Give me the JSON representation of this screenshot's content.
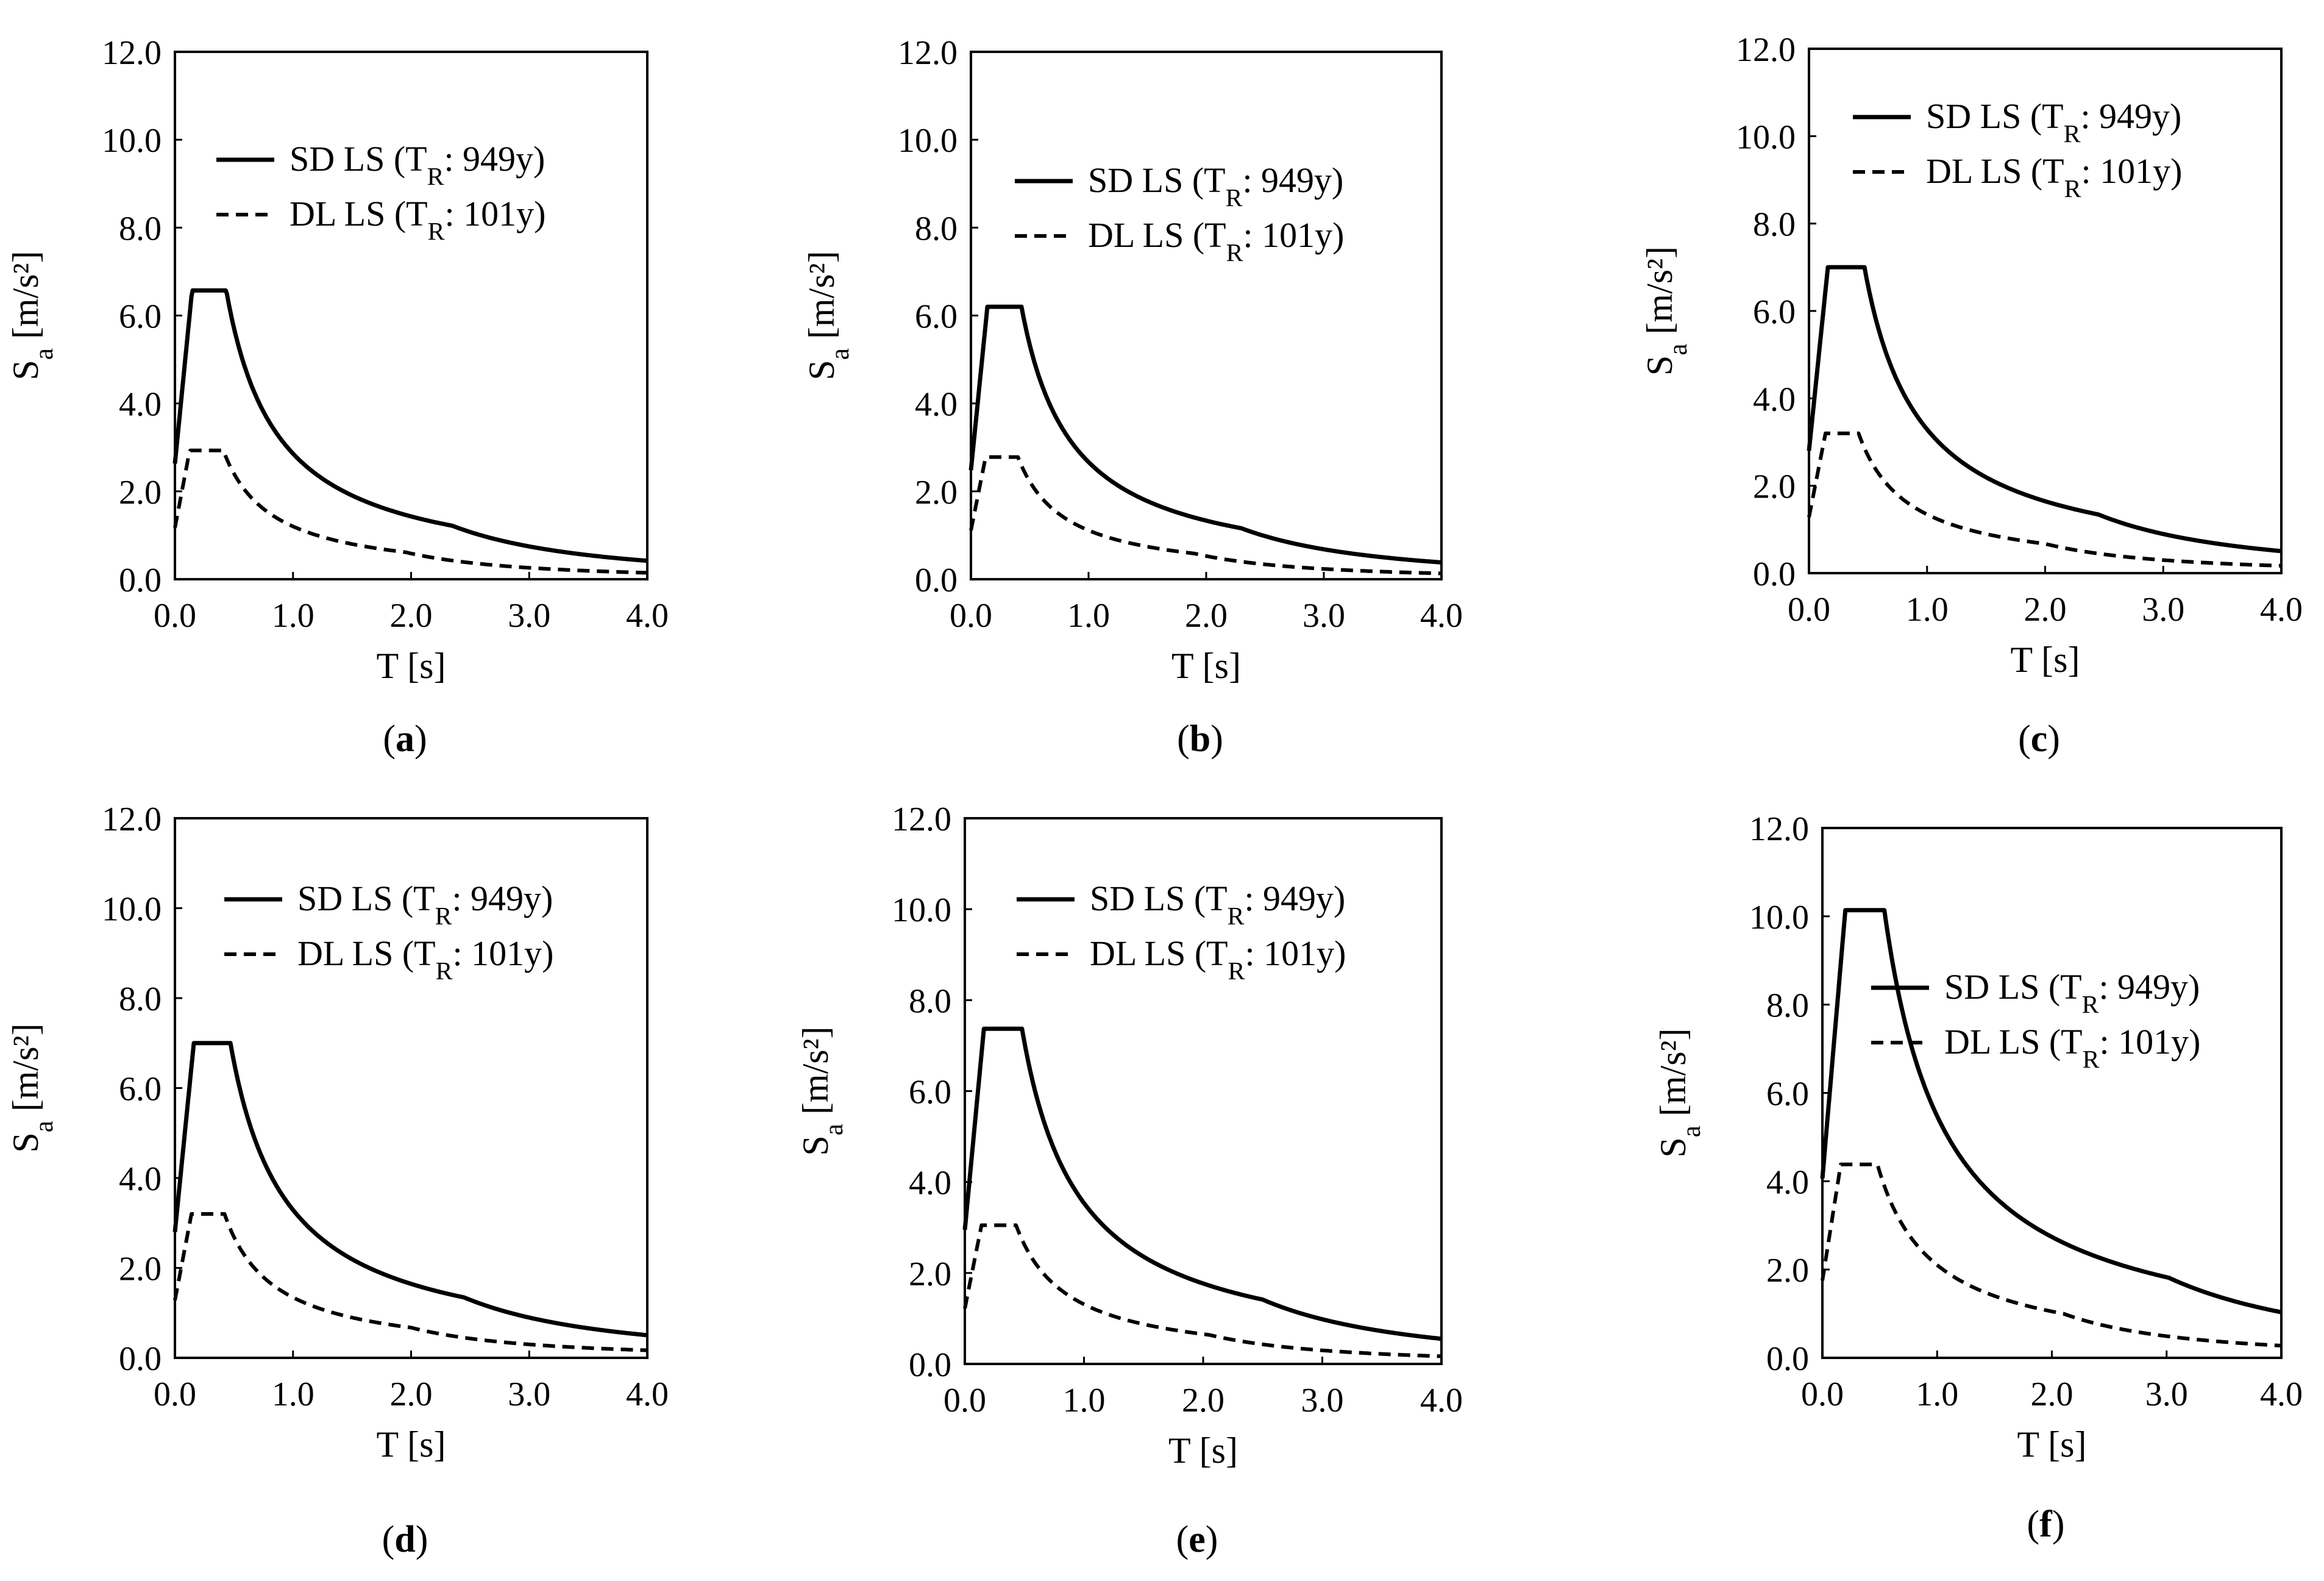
{
  "chart_data": [
    {
      "panel_label": "(a)",
      "panel_letter": "a",
      "type": "line",
      "xlabel": "T [s]",
      "ylabel": "Sa [m/s²]",
      "xlim": [
        0,
        4
      ],
      "ylim": [
        0,
        12
      ],
      "xticks": [
        "0.0",
        "1.0",
        "2.0",
        "3.0",
        "4.0"
      ],
      "yticks": [
        "0.0",
        "2.0",
        "4.0",
        "6.0",
        "8.0",
        "10.0",
        "12.0"
      ],
      "series": [
        {
          "name": "SD LS (TR: 949y)",
          "style": "solid",
          "peak": 6.57,
          "ag": 2.63,
          "TB": 0.145,
          "TC": 0.435,
          "TD": 2.35
        },
        {
          "name": "DL LS (TR: 101y)",
          "style": "dashed",
          "peak": 2.93,
          "ag": 1.17,
          "TB": 0.125,
          "TC": 0.41,
          "TD": 1.95
        }
      ]
    },
    {
      "panel_label": "(b)",
      "panel_letter": "b",
      "type": "line",
      "xlabel": "T [s]",
      "ylabel": "Sa [m/s²]",
      "xlim": [
        0,
        4
      ],
      "ylim": [
        0,
        12
      ],
      "xticks": [
        "0.0",
        "1.0",
        "2.0",
        "3.0",
        "4.0"
      ],
      "yticks": [
        "0.0",
        "2.0",
        "4.0",
        "6.0",
        "8.0",
        "10.0",
        "12.0"
      ],
      "series": [
        {
          "name": "SD LS (TR: 949y)",
          "style": "solid",
          "peak": 6.2,
          "ag": 2.48,
          "TB": 0.14,
          "TC": 0.43,
          "TD": 2.3
        },
        {
          "name": "DL LS (TR: 101y)",
          "style": "dashed",
          "peak": 2.78,
          "ag": 1.11,
          "TB": 0.125,
          "TC": 0.4,
          "TD": 1.9
        }
      ]
    },
    {
      "panel_label": "(c)",
      "panel_letter": "c",
      "type": "line",
      "xlabel": "T [s]",
      "ylabel": "Sa [m/s²]",
      "xlim": [
        0,
        4
      ],
      "ylim": [
        0,
        12
      ],
      "xticks": [
        "0.0",
        "1.0",
        "2.0",
        "3.0",
        "4.0"
      ],
      "yticks": [
        "0.0",
        "2.0",
        "4.0",
        "6.0",
        "8.0",
        "10.0",
        "12.0"
      ],
      "series": [
        {
          "name": "SD LS (TR: 949y)",
          "style": "solid",
          "peak": 7.0,
          "ag": 2.8,
          "TB": 0.16,
          "TC": 0.47,
          "TD": 2.45
        },
        {
          "name": "DL LS (TR: 101y)",
          "style": "dashed",
          "peak": 3.2,
          "ag": 1.28,
          "TB": 0.14,
          "TC": 0.42,
          "TD": 2.0
        }
      ]
    },
    {
      "panel_label": "(d)",
      "panel_letter": "d",
      "type": "line",
      "xlabel": "T [s]",
      "ylabel": "Sa [m/s²]",
      "xlim": [
        0,
        4
      ],
      "ylim": [
        0,
        12
      ],
      "xticks": [
        "0.0",
        "1.0",
        "2.0",
        "3.0",
        "4.0"
      ],
      "yticks": [
        "0.0",
        "2.0",
        "4.0",
        "6.0",
        "8.0",
        "10.0",
        "12.0"
      ],
      "series": [
        {
          "name": "SD LS (TR: 949y)",
          "style": "solid",
          "peak": 7.0,
          "ag": 2.8,
          "TB": 0.16,
          "TC": 0.47,
          "TD": 2.45
        },
        {
          "name": "DL LS (TR: 101y)",
          "style": "dashed",
          "peak": 3.2,
          "ag": 1.28,
          "TB": 0.14,
          "TC": 0.42,
          "TD": 2.0
        }
      ]
    },
    {
      "panel_label": "(e)",
      "panel_letter": "e",
      "type": "line",
      "xlabel": "T [s]",
      "ylabel": "Sa [m/s²]",
      "xlim": [
        0,
        4
      ],
      "ylim": [
        0,
        12
      ],
      "xticks": [
        "0.0",
        "1.0",
        "2.0",
        "3.0",
        "4.0"
      ],
      "yticks": [
        "0.0",
        "2.0",
        "4.0",
        "6.0",
        "8.0",
        "10.0",
        "12.0"
      ],
      "series": [
        {
          "name": "SD LS (TR: 949y)",
          "style": "solid",
          "peak": 7.37,
          "ag": 2.95,
          "TB": 0.16,
          "TC": 0.48,
          "TD": 2.5
        },
        {
          "name": "DL LS (TR: 101y)",
          "style": "dashed",
          "peak": 3.05,
          "ag": 1.22,
          "TB": 0.14,
          "TC": 0.43,
          "TD": 2.05
        }
      ]
    },
    {
      "panel_label": "(f)",
      "panel_letter": "f",
      "type": "line",
      "xlabel": "T [s]",
      "ylabel": "Sa [m/s²]",
      "xlim": [
        0,
        4
      ],
      "ylim": [
        0,
        12
      ],
      "xticks": [
        "0.0",
        "1.0",
        "2.0",
        "3.0",
        "4.0"
      ],
      "yticks": [
        "0.0",
        "2.0",
        "4.0",
        "6.0",
        "8.0",
        "10.0",
        "12.0"
      ],
      "series": [
        {
          "name": "SD LS (TR: 949y)",
          "style": "solid",
          "peak": 10.14,
          "ag": 4.06,
          "TB": 0.2,
          "TC": 0.54,
          "TD": 3.02
        },
        {
          "name": "DL LS (TR: 101y)",
          "style": "dashed",
          "peak": 4.38,
          "ag": 1.75,
          "TB": 0.16,
          "TC": 0.48,
          "TD": 2.1
        }
      ]
    }
  ]
}
